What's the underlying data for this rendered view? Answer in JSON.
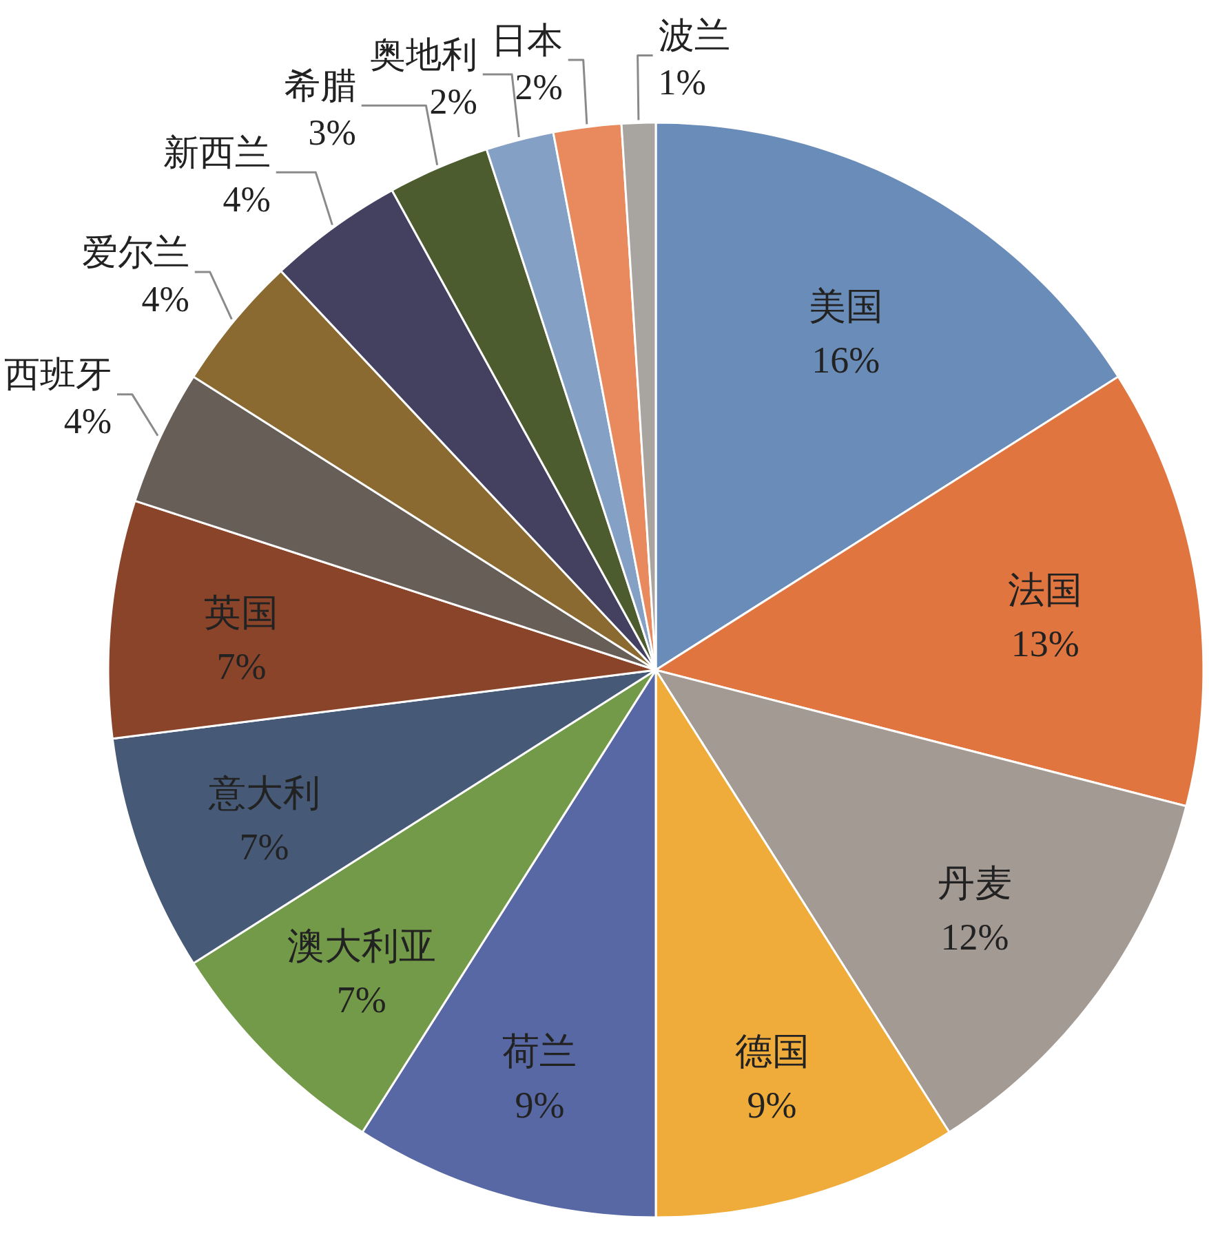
{
  "chart_data": {
    "type": "pie",
    "categories": [
      "美国",
      "法国",
      "丹麦",
      "德国",
      "荷兰",
      "澳大利亚",
      "意大利",
      "英国",
      "西班牙",
      "爱尔兰",
      "新西兰",
      "希腊",
      "奥地利",
      "日本",
      "波兰"
    ],
    "values": [
      16,
      13,
      12,
      9,
      9,
      7,
      7,
      7,
      4,
      4,
      4,
      3,
      2,
      2,
      1
    ],
    "value_labels": [
      "16%",
      "13%",
      "12%",
      "9%",
      "9%",
      "7%",
      "7%",
      "7%",
      "4%",
      "4%",
      "4%",
      "3%",
      "2%",
      "2%",
      "1%"
    ],
    "colors": [
      "#6a8cb8",
      "#e07540",
      "#a39a94",
      "#f0ac3a",
      "#5868a4",
      "#739a48",
      "#465a78",
      "#8a442a",
      "#685e58",
      "#8a6a30",
      "#444060",
      "#4c5c2e",
      "#84a0c4",
      "#e88a5e",
      "#a8a4a0"
    ]
  }
}
